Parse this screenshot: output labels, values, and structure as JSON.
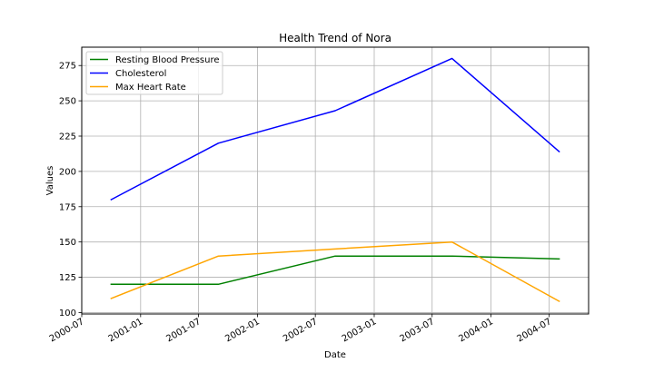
{
  "chart_data": {
    "type": "line",
    "title": "Health Trend of Nora",
    "xlabel": "Date",
    "ylabel": "Values",
    "x_axis_type": "date",
    "xlim": [
      "2000-07-01",
      "2004-11-01"
    ],
    "ylim": [
      99,
      288
    ],
    "x_ticks": [
      "2000-07",
      "2001-01",
      "2001-07",
      "2002-01",
      "2002-07",
      "2003-01",
      "2003-07",
      "2004-01",
      "2004-07"
    ],
    "y_ticks": [
      100,
      125,
      150,
      175,
      200,
      225,
      250,
      275
    ],
    "grid": true,
    "legend_position": "upper-left",
    "series": [
      {
        "name": "Resting Blood Pressure",
        "color": "#008000",
        "x": [
          "2000-10-01",
          "2001-09-01",
          "2002-09-01",
          "2003-09-01",
          "2004-08-01"
        ],
        "values": [
          120,
          120,
          140,
          140,
          138
        ]
      },
      {
        "name": "Cholesterol",
        "color": "#0000ff",
        "x": [
          "2000-10-01",
          "2001-09-01",
          "2002-09-01",
          "2003-09-01",
          "2004-08-01"
        ],
        "values": [
          180,
          220,
          243,
          280,
          214
        ]
      },
      {
        "name": "Max Heart Rate",
        "color": "#ffa500",
        "x": [
          "2000-10-01",
          "2001-09-01",
          "2002-09-01",
          "2003-09-01",
          "2004-08-01"
        ],
        "values": [
          110,
          140,
          145,
          150,
          108
        ]
      }
    ]
  }
}
